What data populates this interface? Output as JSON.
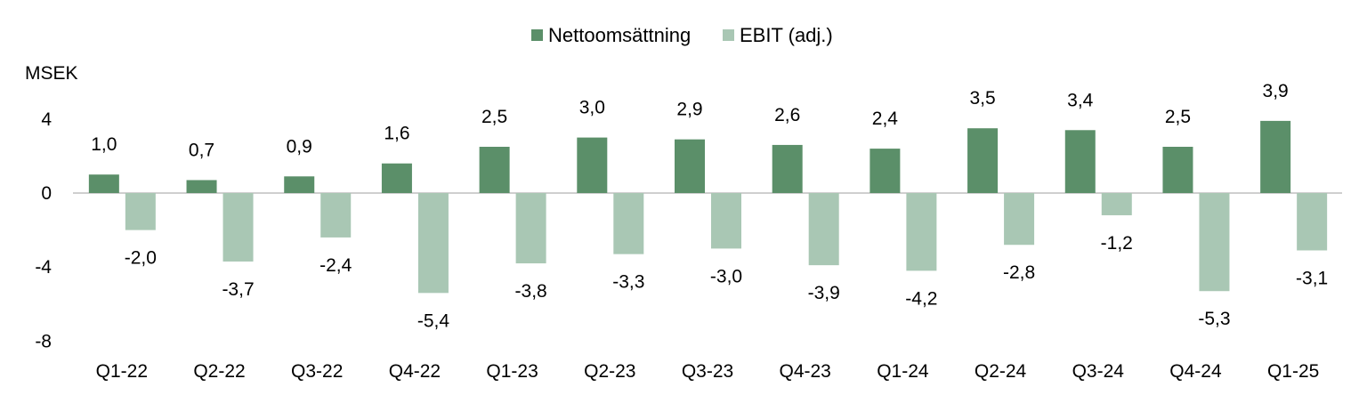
{
  "chart_data": {
    "type": "bar",
    "ylabel": "MSEK",
    "ylim": [
      -8,
      4
    ],
    "yticks": [
      "4",
      "0",
      "-4",
      "-8"
    ],
    "ytick_values": [
      4,
      0,
      -4,
      -8
    ],
    "grid": false,
    "legend_position": "top-center",
    "categories": [
      "Q1-22",
      "Q2-22",
      "Q3-22",
      "Q4-22",
      "Q1-23",
      "Q2-23",
      "Q3-23",
      "Q4-23",
      "Q1-24",
      "Q2-24",
      "Q3-24",
      "Q4-24",
      "Q1-25"
    ],
    "series": [
      {
        "name": "Nettoomsättning",
        "color": "#5b8f69",
        "values": [
          1.0,
          0.7,
          0.9,
          1.6,
          2.5,
          3.0,
          2.9,
          2.6,
          2.4,
          3.5,
          3.4,
          2.5,
          3.9
        ],
        "labels": [
          "1,0",
          "0,7",
          "0,9",
          "1,6",
          "2,5",
          "3,0",
          "2,9",
          "2,6",
          "2,4",
          "3,5",
          "3,4",
          "2,5",
          "3,9"
        ]
      },
      {
        "name": "EBIT (adj.)",
        "color": "#a9c7b4",
        "values": [
          -2.0,
          -3.7,
          -2.4,
          -5.4,
          -3.8,
          -3.3,
          -3.0,
          -3.9,
          -4.2,
          -2.8,
          -1.2,
          -5.3,
          -3.1
        ],
        "labels": [
          "-2,0",
          "-3,7",
          "-2,4",
          "-5,4",
          "-3,8",
          "-3,3",
          "-3,0",
          "-3,9",
          "-4,2",
          "-2,8",
          "-1,2",
          "-5,3",
          "-3,1"
        ]
      }
    ]
  }
}
